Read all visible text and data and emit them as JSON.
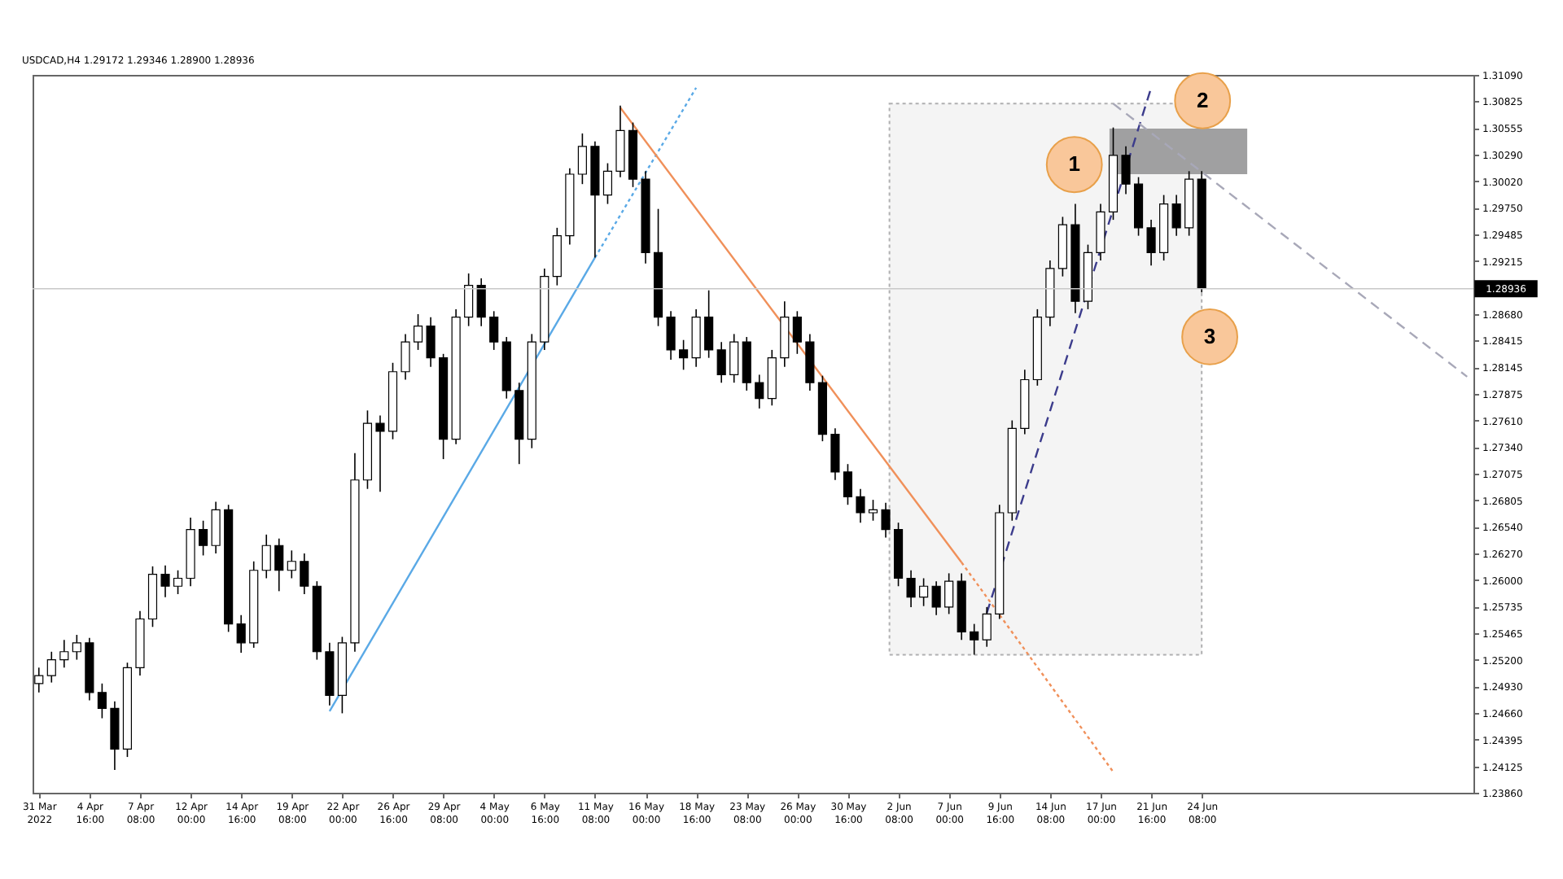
{
  "chart_data": {
    "type": "candlestick",
    "title": "USDCAD,H4  1.29172 1.29346 1.28900 1.28936",
    "color": "#000000",
    "categories": [
      "31 Mar 2022",
      null,
      null,
      null,
      "4 Apr 16:00",
      null,
      null,
      null,
      "7 Apr 08:00",
      null,
      null,
      null,
      "12 Apr 00:00",
      null,
      null,
      null,
      "14 Apr 16:00",
      null,
      null,
      null,
      "19 Apr 08:00",
      null,
      null,
      null,
      "22 Apr 00:00",
      null,
      null,
      null,
      "26 Apr 16:00",
      null,
      null,
      null,
      "29 Apr 08:00",
      null,
      null,
      null,
      "4 May 00:00",
      null,
      null,
      null,
      "6 May 16:00",
      null,
      null,
      null,
      "11 May 08:00",
      null,
      null,
      null,
      "16 May 00:00",
      null,
      null,
      null,
      "18 May 16:00",
      null,
      null,
      null,
      "23 May 08:00",
      null,
      null,
      null,
      "26 May 00:00",
      null,
      null,
      null,
      "30 May 16:00",
      null,
      null,
      null,
      "2 Jun 08:00",
      null,
      null,
      null,
      "7 Jun 00:00",
      null,
      null,
      null,
      "9 Jun 16:00",
      null,
      null,
      null,
      "14 Jun 08:00",
      null,
      null,
      null,
      "17 Jun 00:00",
      null,
      null,
      null,
      "21 Jun 16:00",
      null,
      null,
      null,
      "24 Jun 08:00",
      null,
      null,
      null,
      null,
      null,
      null,
      null,
      null,
      null,
      null,
      null,
      null,
      null,
      null,
      null,
      null,
      null,
      null,
      null,
      null,
      null
    ],
    "ohlc": [
      [
        1.2496,
        1.2512,
        1.2487,
        1.2504
      ],
      [
        1.2504,
        1.2528,
        1.2497,
        1.252
      ],
      [
        1.252,
        1.254,
        1.2512,
        1.2528
      ],
      [
        1.2528,
        1.2545,
        1.252,
        1.2537
      ],
      [
        1.2537,
        1.2542,
        1.2479,
        1.2487
      ],
      [
        1.2487,
        1.2496,
        1.2461,
        1.2471
      ],
      [
        1.2471,
        1.2478,
        1.2409,
        1.243
      ],
      [
        1.243,
        1.2517,
        1.2422,
        1.2512
      ],
      [
        1.2512,
        1.2569,
        1.2504,
        1.2561
      ],
      [
        1.2561,
        1.2614,
        1.2553,
        1.2606
      ],
      [
        1.2606,
        1.2615,
        1.2583,
        1.2594
      ],
      [
        1.2594,
        1.261,
        1.2586,
        1.2602
      ],
      [
        1.2602,
        1.2663,
        1.2594,
        1.2651
      ],
      [
        1.2651,
        1.266,
        1.2625,
        1.2635
      ],
      [
        1.2635,
        1.2679,
        1.2627,
        1.2671
      ],
      [
        1.2671,
        1.2676,
        1.2548,
        1.2556
      ],
      [
        1.2556,
        1.2565,
        1.2527,
        1.2537
      ],
      [
        1.2537,
        1.2619,
        1.2532,
        1.261
      ],
      [
        1.261,
        1.2646,
        1.2602,
        1.2635
      ],
      [
        1.2635,
        1.2642,
        1.2589,
        1.261
      ],
      [
        1.261,
        1.263,
        1.2602,
        1.2619
      ],
      [
        1.2619,
        1.2627,
        1.2586,
        1.2594
      ],
      [
        1.2594,
        1.2599,
        1.252,
        1.2528
      ],
      [
        1.2528,
        1.2537,
        1.2474,
        1.2484
      ],
      [
        1.2484,
        1.2543,
        1.2466,
        1.2537
      ],
      [
        1.2537,
        1.2728,
        1.2528,
        1.2701
      ],
      [
        1.2701,
        1.2771,
        1.2692,
        1.2758
      ],
      [
        1.2758,
        1.2766,
        1.2689,
        1.275
      ],
      [
        1.275,
        1.2819,
        1.2742,
        1.281
      ],
      [
        1.281,
        1.2848,
        1.2802,
        1.284
      ],
      [
        1.284,
        1.2868,
        1.2832,
        1.2856
      ],
      [
        1.2856,
        1.2865,
        1.2815,
        1.2824
      ],
      [
        1.2824,
        1.2828,
        1.2722,
        1.2742
      ],
      [
        1.2742,
        1.2873,
        1.2737,
        1.2865
      ],
      [
        1.2865,
        1.2909,
        1.2856,
        1.2897
      ],
      [
        1.2897,
        1.2904,
        1.2856,
        1.2865
      ],
      [
        1.2865,
        1.2871,
        1.2832,
        1.284
      ],
      [
        1.284,
        1.2845,
        1.2783,
        1.2791
      ],
      [
        1.2791,
        1.2799,
        1.2717,
        1.2742
      ],
      [
        1.2742,
        1.2848,
        1.2733,
        1.284
      ],
      [
        1.284,
        1.2914,
        1.2832,
        1.2906
      ],
      [
        1.2906,
        1.2955,
        1.2897,
        1.2947
      ],
      [
        1.2947,
        1.3015,
        1.2938,
        1.3009
      ],
      [
        1.3009,
        1.305,
        1.2999,
        1.3037
      ],
      [
        1.3037,
        1.3042,
        1.2925,
        1.2988
      ],
      [
        1.2988,
        1.302,
        1.2979,
        1.3012
      ],
      [
        1.3012,
        1.3078,
        1.3006,
        1.3053
      ],
      [
        1.3053,
        1.3061,
        1.2996,
        1.3004
      ],
      [
        1.3004,
        1.3012,
        1.2919,
        1.293
      ],
      [
        1.293,
        1.2974,
        1.2856,
        1.2865
      ],
      [
        1.2865,
        1.2871,
        1.2822,
        1.2832
      ],
      [
        1.2832,
        1.2842,
        1.2812,
        1.2824
      ],
      [
        1.2824,
        1.2873,
        1.2815,
        1.2865
      ],
      [
        1.2865,
        1.2892,
        1.2824,
        1.2832
      ],
      [
        1.2832,
        1.284,
        1.2799,
        1.2807
      ],
      [
        1.2807,
        1.2848,
        1.2799,
        1.284
      ],
      [
        1.284,
        1.2845,
        1.2791,
        1.2799
      ],
      [
        1.2799,
        1.2807,
        1.2773,
        1.2783
      ],
      [
        1.2783,
        1.2832,
        1.2776,
        1.2824
      ],
      [
        1.2824,
        1.2881,
        1.2815,
        1.2865
      ],
      [
        1.2865,
        1.2871,
        1.2828,
        1.284
      ],
      [
        1.284,
        1.2848,
        1.2791,
        1.2799
      ],
      [
        1.2799,
        1.2806,
        1.274,
        1.2747
      ],
      [
        1.2747,
        1.2753,
        1.2701,
        1.2709
      ],
      [
        1.2709,
        1.2717,
        1.2676,
        1.2684
      ],
      [
        1.2684,
        1.2692,
        1.2658,
        1.2668
      ],
      [
        1.2668,
        1.2681,
        1.266,
        1.2671
      ],
      [
        1.2671,
        1.2678,
        1.2643,
        1.2651
      ],
      [
        1.2651,
        1.2658,
        1.2594,
        1.2602
      ],
      [
        1.2602,
        1.261,
        1.2573,
        1.2583
      ],
      [
        1.2583,
        1.2602,
        1.2574,
        1.2594
      ],
      [
        1.2594,
        1.2599,
        1.2565,
        1.2573
      ],
      [
        1.2573,
        1.2607,
        1.2566,
        1.2599
      ],
      [
        1.2599,
        1.2607,
        1.254,
        1.2548
      ],
      [
        1.2548,
        1.2556,
        1.2525,
        1.254
      ],
      [
        1.254,
        1.2573,
        1.2533,
        1.2566
      ],
      [
        1.2566,
        1.2676,
        1.2561,
        1.2668
      ],
      [
        1.2668,
        1.2761,
        1.266,
        1.2753
      ],
      [
        1.2753,
        1.2812,
        1.2747,
        1.2802
      ],
      [
        1.2802,
        1.2873,
        1.2796,
        1.2865
      ],
      [
        1.2865,
        1.2922,
        1.2856,
        1.2914
      ],
      [
        1.2914,
        1.2966,
        1.2906,
        1.2958
      ],
      [
        1.2958,
        1.2979,
        1.2869,
        1.2881
      ],
      [
        1.2881,
        1.2938,
        1.2873,
        1.293
      ],
      [
        1.293,
        1.2979,
        1.2922,
        1.2971
      ],
      [
        1.2971,
        1.3056,
        1.2963,
        1.3028
      ],
      [
        1.3028,
        1.3037,
        1.2989,
        1.2999
      ],
      [
        1.2999,
        1.3006,
        1.2947,
        1.2955
      ],
      [
        1.2955,
        1.2963,
        1.2917,
        1.293
      ],
      [
        1.293,
        1.2988,
        1.2922,
        1.2979
      ],
      [
        1.2979,
        1.2988,
        1.2947,
        1.2955
      ],
      [
        1.2955,
        1.3012,
        1.2947,
        1.3004
      ],
      [
        1.3004,
        1.3012,
        1.289,
        1.2894
      ],
      null,
      null,
      null,
      null,
      null,
      null,
      null,
      null,
      null,
      null,
      null,
      null,
      null,
      null,
      null,
      null,
      null,
      null,
      null,
      null,
      null
    ],
    "series": [
      {
        "type": "line",
        "color": "#5aa9e6",
        "line_style": "solid",
        "values": [
          null,
          null,
          null,
          null,
          null,
          null,
          null,
          null,
          null,
          null,
          null,
          null,
          null,
          null,
          null,
          null,
          null,
          null,
          null,
          null,
          null,
          null,
          null,
          1.2468,
          null,
          null,
          null,
          null,
          null,
          null,
          null,
          null,
          null,
          null,
          null,
          null,
          null,
          null,
          null,
          null,
          null,
          null,
          null,
          null,
          1.2925,
          null,
          null,
          null,
          null,
          null,
          null,
          null,
          null,
          null,
          null,
          null,
          null,
          null,
          null,
          null,
          null,
          null,
          null,
          null,
          null,
          null,
          null,
          null,
          null,
          null,
          null,
          null,
          null,
          null,
          null,
          null,
          null,
          null,
          null,
          null,
          null,
          null,
          null,
          null,
          null,
          null,
          null,
          null,
          null,
          null,
          null,
          null,
          null,
          null,
          null,
          null,
          null,
          null,
          null,
          null,
          null,
          null,
          null,
          null,
          null,
          null,
          null,
          null,
          null,
          null,
          null,
          null,
          null,
          null
        ]
      },
      {
        "type": "line",
        "color": "#5aa9e6",
        "line_style": "dotted",
        "values": [
          null,
          null,
          null,
          null,
          null,
          null,
          null,
          null,
          null,
          null,
          null,
          null,
          null,
          null,
          null,
          null,
          null,
          null,
          null,
          null,
          null,
          null,
          null,
          null,
          null,
          null,
          null,
          null,
          null,
          null,
          null,
          null,
          null,
          null,
          null,
          null,
          null,
          null,
          null,
          null,
          null,
          null,
          null,
          null,
          1.2925,
          null,
          null,
          null,
          null,
          null,
          null,
          null,
          1.3096,
          null,
          null,
          null,
          null,
          null,
          null,
          null,
          null,
          null,
          null,
          null,
          null,
          null,
          null,
          null,
          null,
          null,
          null,
          null,
          null,
          null,
          null,
          null,
          null,
          null,
          null,
          null,
          null,
          null,
          null,
          null,
          null,
          null,
          null,
          null,
          null,
          null,
          null,
          null,
          null,
          null,
          null,
          null,
          null,
          null,
          null,
          null,
          null,
          null,
          null,
          null,
          null,
          null,
          null,
          null,
          null,
          null,
          null,
          null,
          null,
          null
        ]
      },
      {
        "type": "line",
        "color": "#f0905a",
        "line_style": "solid",
        "values": [
          null,
          null,
          null,
          null,
          null,
          null,
          null,
          null,
          null,
          null,
          null,
          null,
          null,
          null,
          null,
          null,
          null,
          null,
          null,
          null,
          null,
          null,
          null,
          null,
          null,
          null,
          null,
          null,
          null,
          null,
          null,
          null,
          null,
          null,
          null,
          null,
          null,
          null,
          null,
          null,
          null,
          null,
          null,
          null,
          null,
          null,
          1.3076,
          null,
          null,
          null,
          null,
          null,
          null,
          null,
          null,
          null,
          null,
          null,
          null,
          null,
          null,
          null,
          null,
          null,
          null,
          null,
          null,
          null,
          null,
          null,
          null,
          null,
          null,
          1.2618,
          null,
          null,
          null,
          null,
          null,
          null,
          null,
          null,
          null,
          null,
          null,
          null,
          null,
          null,
          null,
          null,
          null,
          null,
          null,
          null,
          null,
          null,
          null,
          null,
          null,
          null,
          null,
          null,
          null,
          null,
          null,
          null,
          null,
          null,
          null,
          null,
          null,
          null,
          null,
          null
        ]
      },
      {
        "type": "line",
        "color": "#f0905a",
        "line_style": "dotted",
        "values": [
          null,
          null,
          null,
          null,
          null,
          null,
          null,
          null,
          null,
          null,
          null,
          null,
          null,
          null,
          null,
          null,
          null,
          null,
          null,
          null,
          null,
          null,
          null,
          null,
          null,
          null,
          null,
          null,
          null,
          null,
          null,
          null,
          null,
          null,
          null,
          null,
          null,
          null,
          null,
          null,
          null,
          null,
          null,
          null,
          null,
          null,
          null,
          null,
          null,
          null,
          null,
          null,
          null,
          null,
          null,
          null,
          null,
          null,
          null,
          null,
          null,
          null,
          null,
          null,
          null,
          null,
          null,
          null,
          null,
          null,
          null,
          null,
          null,
          1.2618,
          null,
          null,
          null,
          null,
          null,
          null,
          null,
          null,
          null,
          null,
          null,
          1.2407,
          null,
          null,
          null,
          null,
          null,
          null,
          null,
          null,
          null,
          null,
          null,
          null,
          null,
          null,
          null,
          null,
          null,
          null,
          null,
          null,
          null,
          null,
          null,
          null,
          null,
          null,
          null,
          null
        ]
      },
      {
        "type": "line",
        "color": "#3c3c8c",
        "line_style": "dashed",
        "values": [
          null,
          null,
          null,
          null,
          null,
          null,
          null,
          null,
          null,
          null,
          null,
          null,
          null,
          null,
          null,
          null,
          null,
          null,
          null,
          null,
          null,
          null,
          null,
          null,
          null,
          null,
          null,
          null,
          null,
          null,
          null,
          null,
          null,
          null,
          null,
          null,
          null,
          null,
          null,
          null,
          null,
          null,
          null,
          null,
          null,
          null,
          null,
          null,
          null,
          null,
          null,
          null,
          null,
          null,
          null,
          null,
          null,
          null,
          null,
          null,
          null,
          null,
          null,
          null,
          null,
          null,
          null,
          null,
          null,
          null,
          null,
          null,
          null,
          null,
          null,
          1.2567,
          null,
          null,
          null,
          null,
          null,
          null,
          null,
          null,
          null,
          null,
          null,
          null,
          1.3096,
          null,
          null,
          null,
          null,
          null,
          null,
          null,
          null,
          null,
          null,
          null,
          null,
          null,
          null,
          null,
          null,
          null,
          null,
          null,
          null,
          null,
          null,
          null,
          null,
          null
        ]
      },
      {
        "type": "line",
        "color": "#a8a8b8",
        "line_style": "dashed",
        "values": [
          null,
          null,
          null,
          null,
          null,
          null,
          null,
          null,
          null,
          null,
          null,
          null,
          null,
          null,
          null,
          null,
          null,
          null,
          null,
          null,
          null,
          null,
          null,
          null,
          null,
          null,
          null,
          null,
          null,
          null,
          null,
          null,
          null,
          null,
          null,
          null,
          null,
          null,
          null,
          null,
          null,
          null,
          null,
          null,
          null,
          null,
          null,
          null,
          null,
          null,
          null,
          null,
          null,
          null,
          null,
          null,
          null,
          null,
          null,
          null,
          null,
          null,
          null,
          null,
          null,
          null,
          null,
          null,
          null,
          null,
          null,
          null,
          null,
          null,
          null,
          null,
          null,
          null,
          null,
          null,
          null,
          null,
          null,
          null,
          null,
          1.308,
          null,
          null,
          null,
          null,
          null,
          null,
          null,
          null,
          null,
          null,
          null,
          null,
          null,
          null,
          null,
          null,
          null,
          null,
          null,
          null,
          null,
          null,
          null,
          null,
          null,
          null,
          null,
          1.2805
        ]
      }
    ],
    "ylim": [
      1.2386,
      1.3109
    ],
    "yticks": [
      {
        "value": 1.3109,
        "label": "1.31090"
      },
      1.30825,
      1.30555,
      {
        "value": 1.3029,
        "label": "1.30290"
      },
      {
        "value": 1.3002,
        "label": "1.30020"
      },
      {
        "value": 1.2975,
        "label": "1.29750"
      },
      1.29485,
      1.29215,
      {
        "value": 1.2868,
        "label": "1.28680"
      },
      1.28415,
      1.28145,
      1.27875,
      {
        "value": 1.2761,
        "label": "1.27610"
      },
      {
        "value": 1.2734,
        "label": "1.27340"
      },
      1.27075,
      1.26805,
      {
        "value": 1.2654,
        "label": "1.26540"
      },
      {
        "value": 1.2627,
        "label": "1.26270"
      },
      {
        "value": 1.26,
        "label": "1.26000"
      },
      1.25735,
      1.25465,
      {
        "value": 1.252,
        "label": "1.25200"
      },
      {
        "value": 1.2493,
        "label": "1.24930"
      },
      {
        "value": 1.2466,
        "label": "1.24660"
      },
      1.24395,
      1.24125,
      {
        "value": 1.2386,
        "label": "1.23860"
      }
    ],
    "ref_lines": [
      {
        "axis": "y",
        "value": 1.28936,
        "label": "1.28936",
        "color": "#c8c8c8"
      }
    ],
    "annotations": [
      "1",
      "2",
      "3"
    ]
  }
}
